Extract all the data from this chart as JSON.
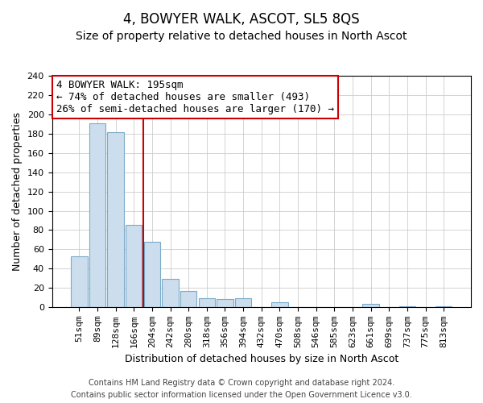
{
  "title": "4, BOWYER WALK, ASCOT, SL5 8QS",
  "subtitle": "Size of property relative to detached houses in North Ascot",
  "xlabel": "Distribution of detached houses by size in North Ascot",
  "ylabel": "Number of detached properties",
  "categories": [
    "51sqm",
    "89sqm",
    "128sqm",
    "166sqm",
    "204sqm",
    "242sqm",
    "280sqm",
    "318sqm",
    "356sqm",
    "394sqm",
    "432sqm",
    "470sqm",
    "508sqm",
    "546sqm",
    "585sqm",
    "623sqm",
    "661sqm",
    "699sqm",
    "737sqm",
    "775sqm",
    "813sqm"
  ],
  "values": [
    53,
    191,
    182,
    85,
    68,
    29,
    17,
    9,
    8,
    9,
    0,
    5,
    0,
    0,
    0,
    0,
    3,
    0,
    1,
    0,
    1
  ],
  "bar_color": "#ccdded",
  "bar_edge_color": "#7aaac8",
  "vline_color": "#cc0000",
  "annotation_text": "4 BOWYER WALK: 195sqm\n← 74% of detached houses are smaller (493)\n26% of semi-detached houses are larger (170) →",
  "annotation_box_color": "#ffffff",
  "annotation_box_edge": "#cc0000",
  "ylim": [
    0,
    240
  ],
  "yticks": [
    0,
    20,
    40,
    60,
    80,
    100,
    120,
    140,
    160,
    180,
    200,
    220,
    240
  ],
  "footer_line1": "Contains HM Land Registry data © Crown copyright and database right 2024.",
  "footer_line2": "Contains public sector information licensed under the Open Government Licence v3.0.",
  "title_fontsize": 12,
  "subtitle_fontsize": 10,
  "axis_label_fontsize": 9,
  "tick_fontsize": 8,
  "annotation_fontsize": 9,
  "footer_fontsize": 7
}
